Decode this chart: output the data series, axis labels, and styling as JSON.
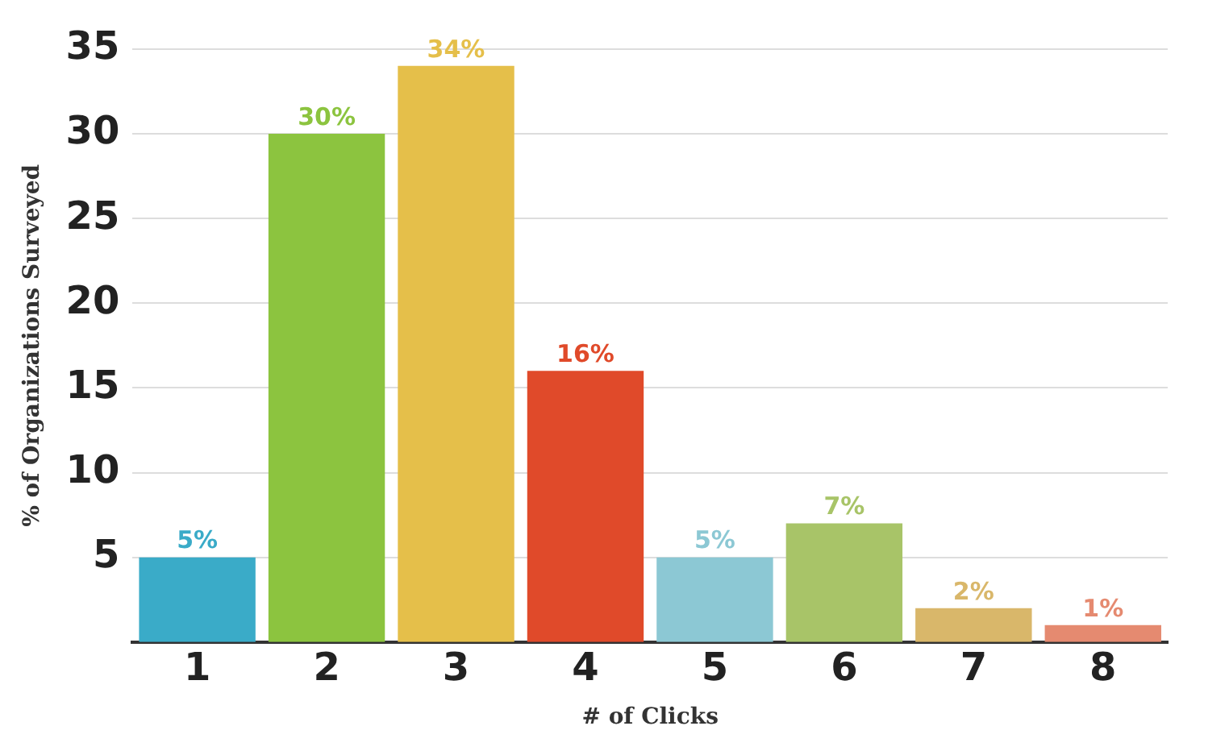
{
  "chart_data": {
    "type": "bar",
    "xlabel": "# of Clicks",
    "ylabel": "% of Organizations Surveyed",
    "categories": [
      "1",
      "2",
      "3",
      "4",
      "5",
      "6",
      "7",
      "8"
    ],
    "values": [
      5,
      30,
      34,
      16,
      5,
      7,
      2,
      1
    ],
    "colors": [
      "#3aabc8",
      "#8cc43f",
      "#e5bf4a",
      "#e04a2a",
      "#8cc8d4",
      "#a8c468",
      "#d9b76a",
      "#e58a70"
    ],
    "value_labels": [
      "5%",
      "30%",
      "34%",
      "16%",
      "5%",
      "7%",
      "2%",
      "1%"
    ],
    "ylim": [
      0,
      35
    ],
    "yticks": [
      5,
      10,
      15,
      20,
      25,
      30,
      35
    ],
    "grid": "y",
    "legend": false
  }
}
